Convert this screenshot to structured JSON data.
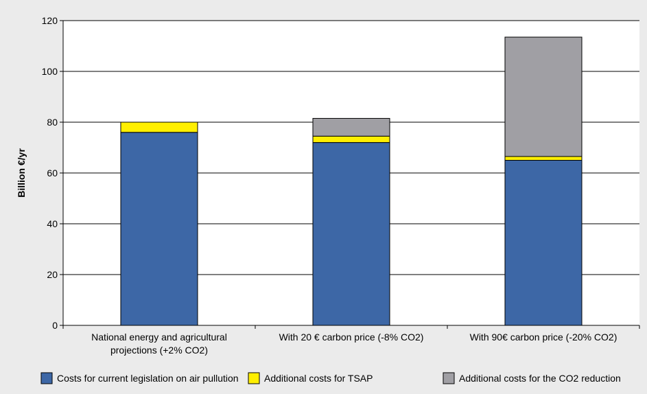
{
  "chart_data": {
    "type": "bar",
    "stacked": true,
    "categories": [
      [
        "National energy and agricultural",
        "projections (+2% CO2)"
      ],
      [
        "With 20 € carbon price (-8% CO2)"
      ],
      [
        "With 90€ carbon price (-20% CO2)"
      ]
    ],
    "series": [
      {
        "name": "Costs for current legislation on air pullution",
        "color": "#3d67a6",
        "values": [
          76,
          72,
          65
        ]
      },
      {
        "name": "Additional costs for TSAP",
        "color": "#ffef00",
        "values": [
          4,
          2.5,
          1.5
        ]
      },
      {
        "name": "Additional costs for the CO2 reduction",
        "color": "#a09fa4",
        "values": [
          0,
          7,
          47
        ]
      }
    ],
    "ylabel": "Billion €/yr",
    "ylim": [
      0,
      120
    ],
    "yticks": [
      0,
      20,
      40,
      60,
      80,
      100,
      120
    ],
    "grid": true,
    "legend": "bottom"
  }
}
